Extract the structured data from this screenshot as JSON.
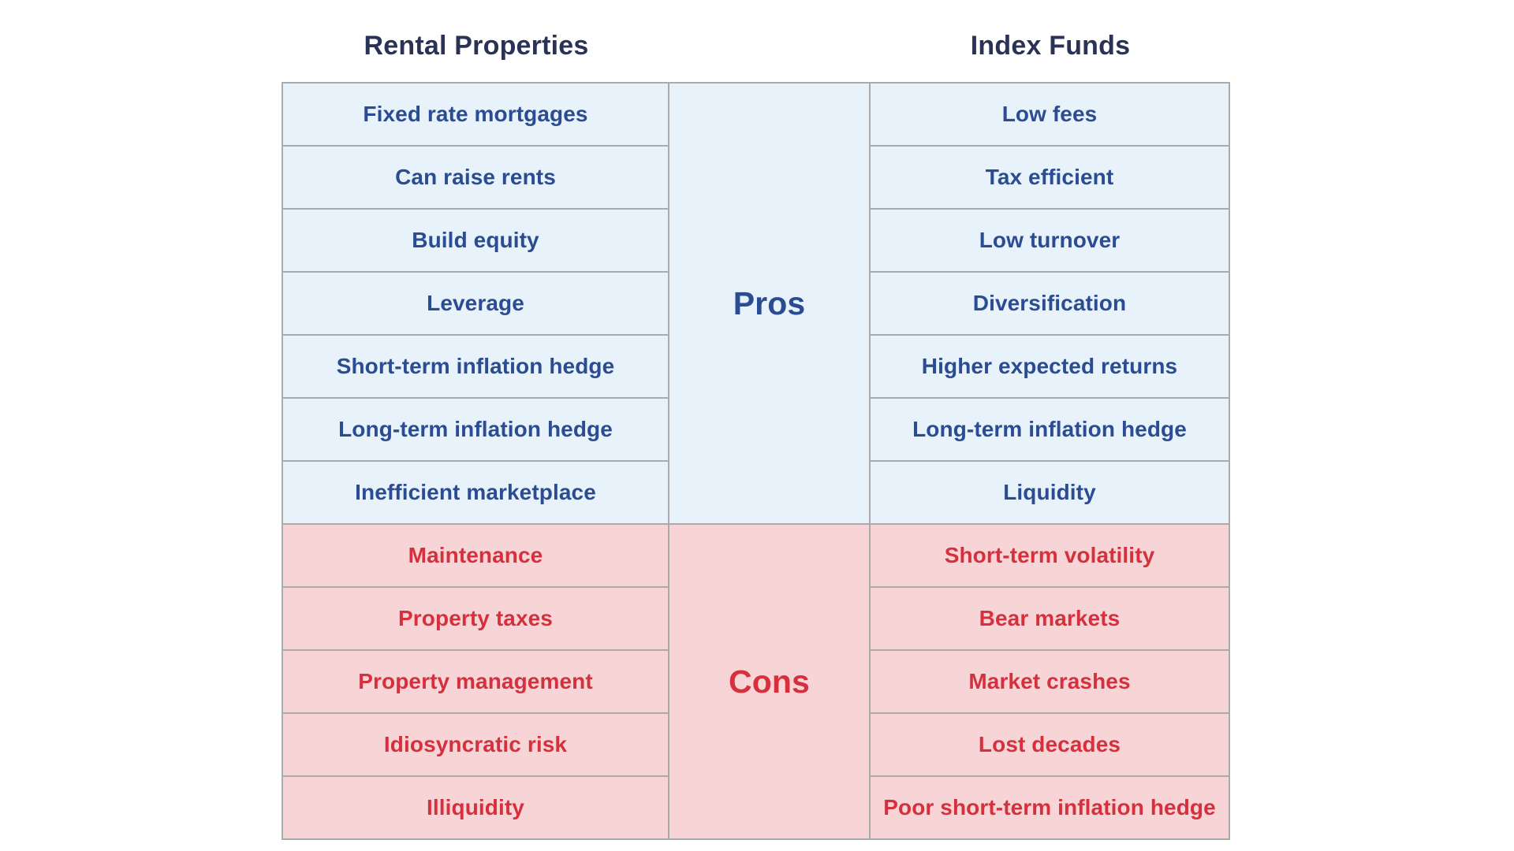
{
  "columns": {
    "left_title": "Rental Properties",
    "right_title": "Index Funds"
  },
  "sections": [
    {
      "label": "Pros",
      "kind": "pros",
      "bg_color": "#e7f2fb",
      "text_color": "#2b4b92",
      "left_items": [
        "Fixed rate mortgages",
        "Can raise rents",
        "Build equity",
        "Leverage",
        "Short-term inflation hedge",
        "Long-term inflation hedge",
        "Inefficient marketplace"
      ],
      "right_items": [
        "Low fees",
        "Tax efficient",
        "Low turnover",
        "Diversification",
        "Higher expected returns",
        "Long-term inflation hedge",
        "Liquidity"
      ]
    },
    {
      "label": "Cons",
      "kind": "cons",
      "bg_color": "#f7d5d6",
      "text_color": "#d6303e",
      "left_items": [
        "Maintenance",
        "Property taxes",
        "Property management",
        "Idiosyncratic risk",
        "Illiquidity"
      ],
      "right_items": [
        "Short-term volatility",
        "Bear markets",
        "Market crashes",
        "Lost decades",
        "Poor short-term inflation hedge"
      ]
    }
  ],
  "style": {
    "title_color": "#2a3356",
    "border_color": "#ababab",
    "background": "#ffffff"
  }
}
